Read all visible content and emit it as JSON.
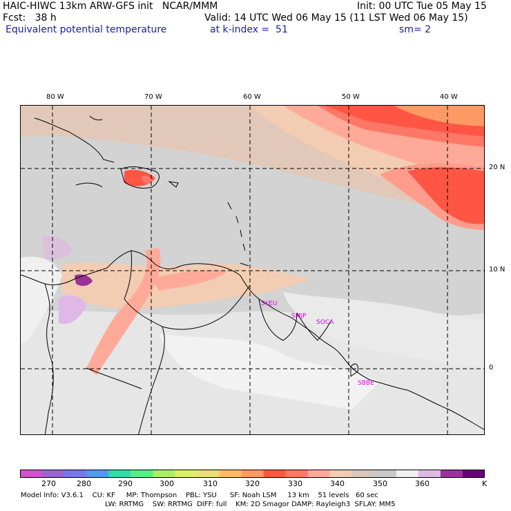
{
  "header": {
    "model_title": "HAIC-HIWC 13km ARW-GFS init   NCAR/MMM",
    "forecast": "Fcst:   38 h",
    "field_name": "Equivalent potential temperature",
    "init": "Init: 00 UTC Tue 05 May 15",
    "valid": "Valid: 14 UTC Wed 06 May 15 (11 LST Wed 06 May 15)",
    "level": "at k-index =  51",
    "smoothing": "sm= 2"
  },
  "longitude_labels": [
    "80 W",
    "70 W",
    "60 W",
    "50 W",
    "40 W"
  ],
  "latitude_labels": [
    "20 N",
    "10 N",
    "0"
  ],
  "stations": [
    "SYEU",
    "SMJP",
    "SOCA",
    "SBBE"
  ],
  "colorbar": {
    "labels": [
      "270",
      "280",
      "290",
      "300",
      "310",
      "320",
      "330",
      "340",
      "350",
      "360"
    ],
    "unit": "K",
    "colors": [
      "#cc55cc",
      "#9966cc",
      "#7777ee",
      "#5599ee",
      "#33ddaa",
      "#55ee88",
      "#aaee66",
      "#ddee66",
      "#eedd77",
      "#ffbb66",
      "#ff9966",
      "#ff5544",
      "#ff7766",
      "#ffaa99",
      "#f2ccb3",
      "#d9c6bd",
      "#c8c8c8",
      "#f0f0f0",
      "#e0b8e8",
      "#993399",
      "#660077"
    ]
  },
  "footer": {
    "line1": "Model Info: V3.6.1    CU: KF     MP: Thompson    PBL: YSU      SF: Noah LSM     13 km    51 levels   60 sec",
    "line2": "LW: RRTMG    SW: RRTMG  DIFF: full    KM: 2D Smagor DAMP: Rayleigh3  SFLAY: MM5"
  }
}
